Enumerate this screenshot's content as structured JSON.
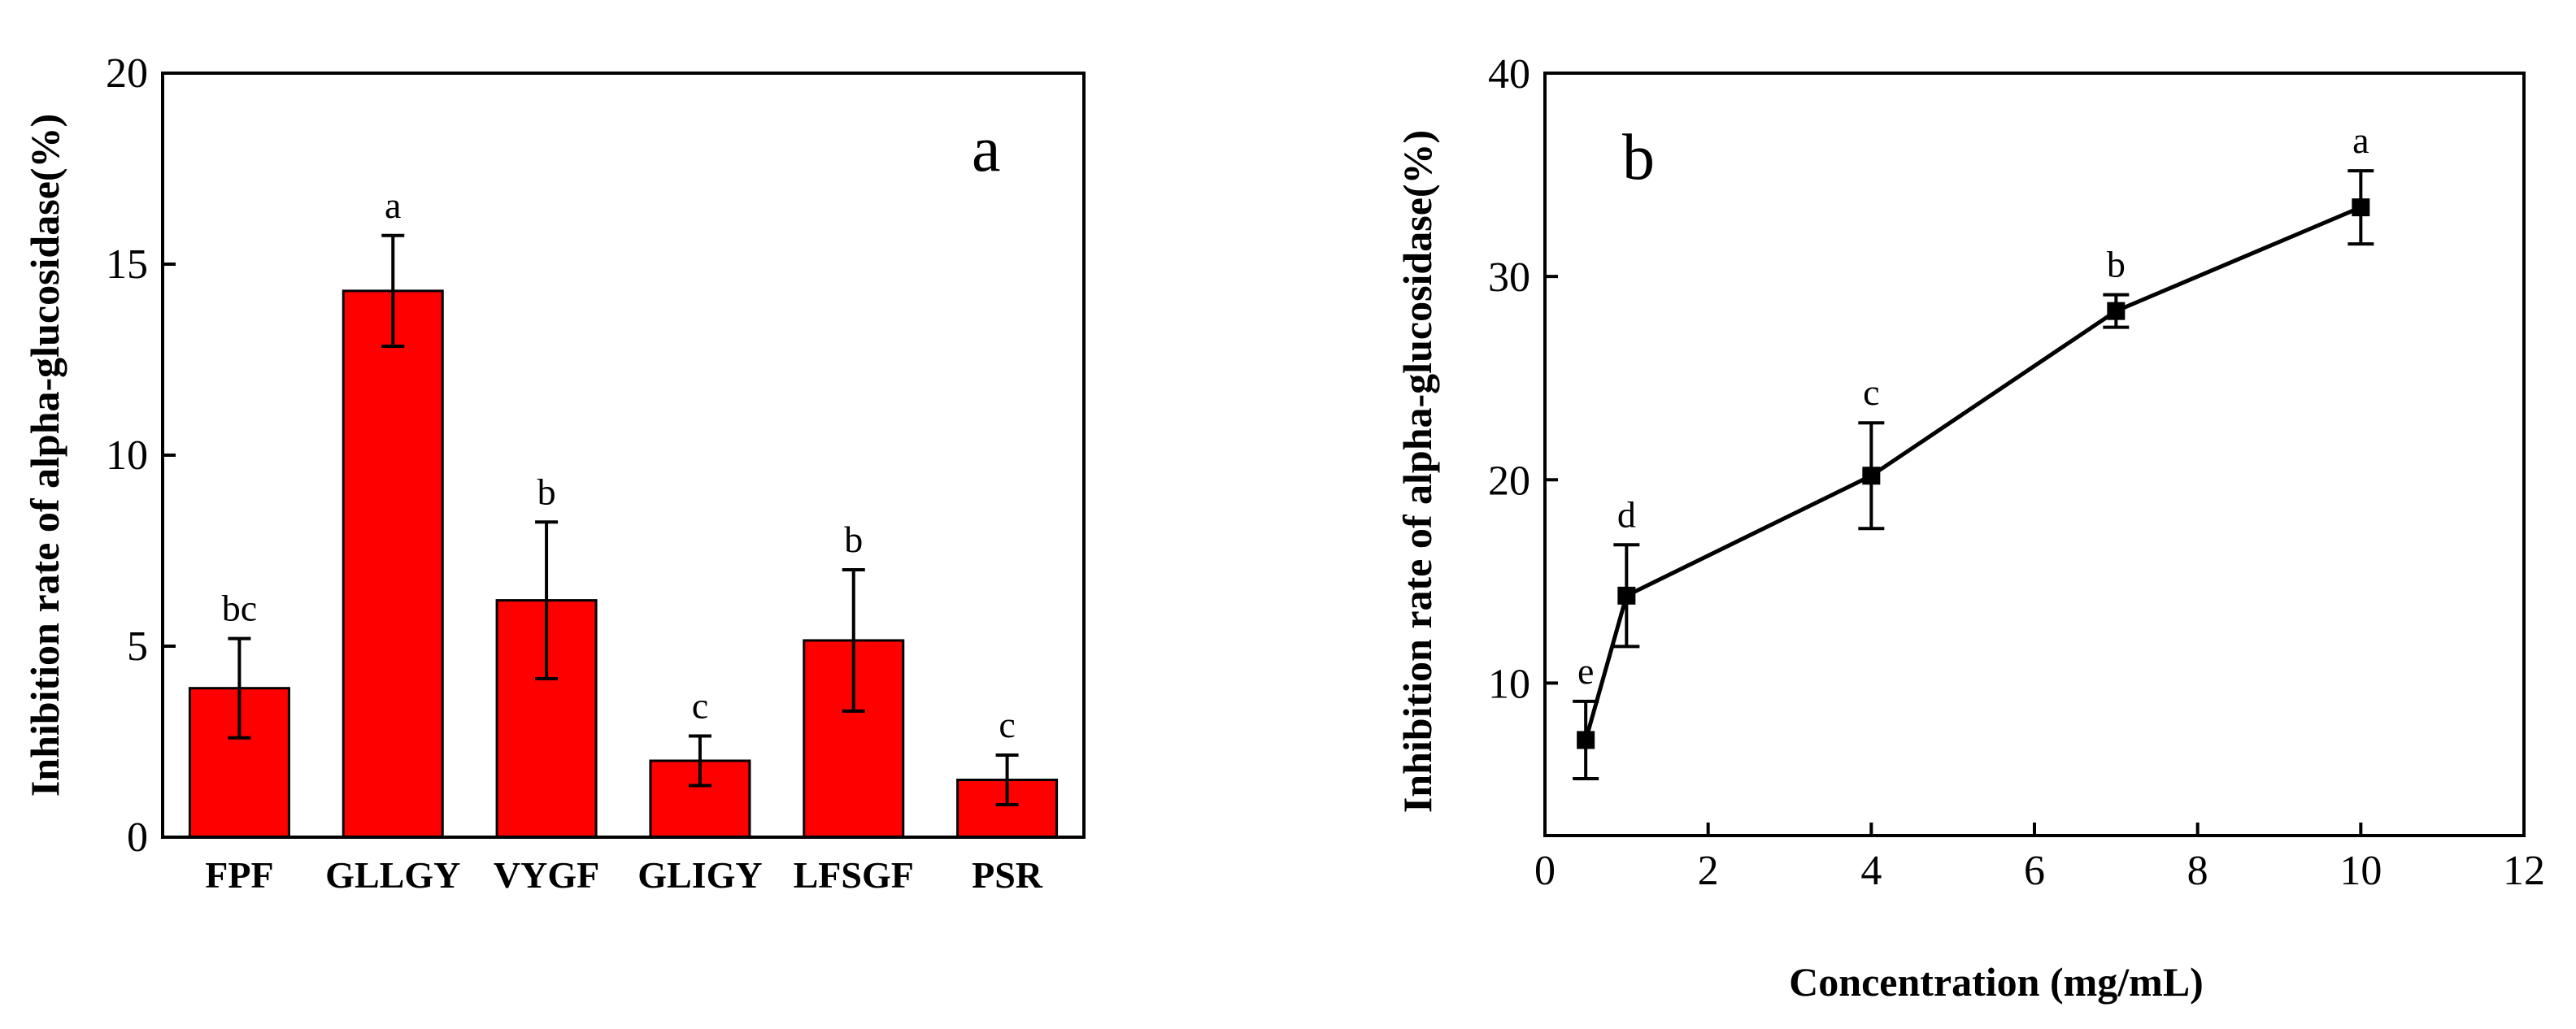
{
  "chart_data": [
    {
      "type": "bar",
      "panel_label": "a",
      "title": "",
      "xlabel": "",
      "ylabel": "Inhibition rate of alpha-glucosidase(%)",
      "ylim": [
        0,
        20
      ],
      "yticks": [
        0,
        5,
        10,
        15,
        20
      ],
      "categories": [
        "FPF",
        "GLLGY",
        "VYGF",
        "GLIGY",
        "LFSGF",
        "PSR"
      ],
      "values": [
        3.9,
        14.3,
        6.2,
        2.0,
        5.15,
        1.5
      ],
      "errors": [
        1.3,
        1.45,
        2.05,
        0.65,
        1.85,
        0.65
      ],
      "significance": [
        "bc",
        "a",
        "b",
        "c",
        "b",
        "c"
      ],
      "bar_color": "#ff0000"
    },
    {
      "type": "line",
      "panel_label": "b",
      "title": "",
      "xlabel": "Concentration (mg/mL)",
      "ylabel": "Inhibition rate of alpha-glucosidase(%)",
      "xlim": [
        0,
        12
      ],
      "ylim": [
        2.5,
        40
      ],
      "xticks": [
        0,
        2,
        4,
        6,
        8,
        10,
        12
      ],
      "yticks": [
        10,
        20,
        30,
        40
      ],
      "x": [
        0.5,
        1,
        4,
        7,
        10
      ],
      "y": [
        7.2,
        14.3,
        20.2,
        28.3,
        33.4
      ],
      "errors": [
        1.9,
        2.5,
        2.6,
        0.8,
        1.8
      ],
      "significance": [
        "e",
        "d",
        "c",
        "b",
        "a"
      ],
      "line_color": "#000000"
    }
  ]
}
